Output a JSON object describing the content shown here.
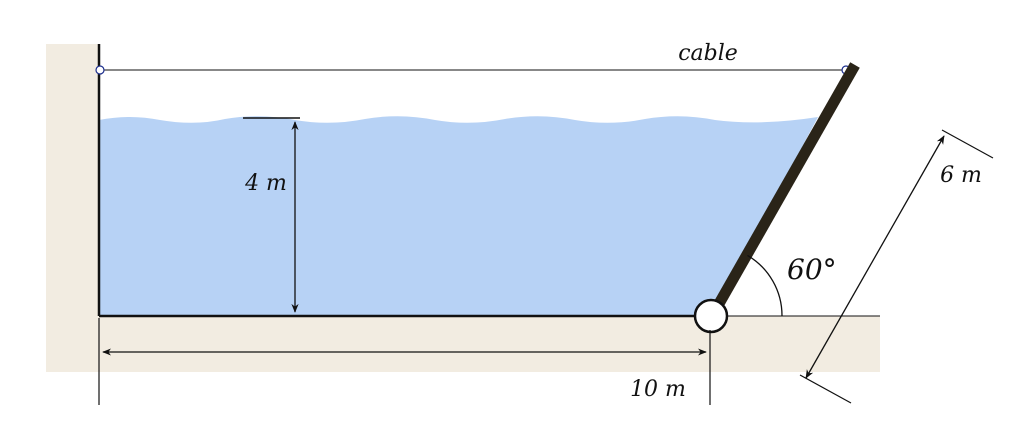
{
  "labels": {
    "cable": "cable",
    "depth": "4 m",
    "width": "10 m",
    "gate_length": "6 m",
    "angle": "60°"
  },
  "colors": {
    "ground": "#f2ece1",
    "water": "#b7d2f5",
    "gate": "#2a2418",
    "line": "#111111",
    "hinge_fill": "#ffffff",
    "anchor": "#1a2c8c",
    "background": "#ffffff"
  }
}
